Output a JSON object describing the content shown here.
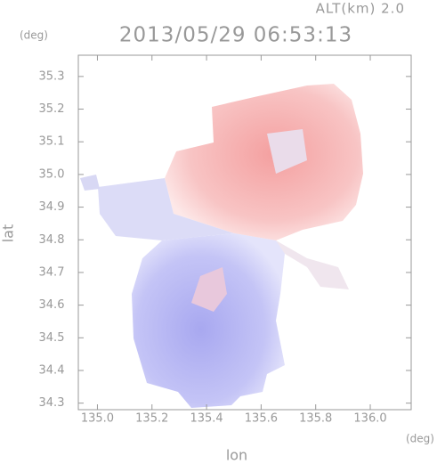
{
  "chart_data": {
    "type": "map",
    "title": "2013/05/29 06:53:13",
    "subtitle": "ALT(km) 2.0",
    "x_label": "lon",
    "y_label": "lat",
    "x_unit": "(deg)",
    "y_unit": "(deg)",
    "xlim": [
      134.93,
      136.15
    ],
    "ylim": [
      34.28,
      35.365
    ],
    "xticks": [
      {
        "value": 135,
        "label": "135.0"
      },
      135.2,
      135.4,
      135.6,
      135.8,
      {
        "value": 136,
        "label": "136.0"
      }
    ],
    "yticks": [
      34.3,
      34.4,
      34.5,
      34.6,
      34.7,
      34.8,
      34.9,
      {
        "value": 35,
        "label": "35.0"
      },
      35.1,
      35.2,
      35.3
    ]
  }
}
